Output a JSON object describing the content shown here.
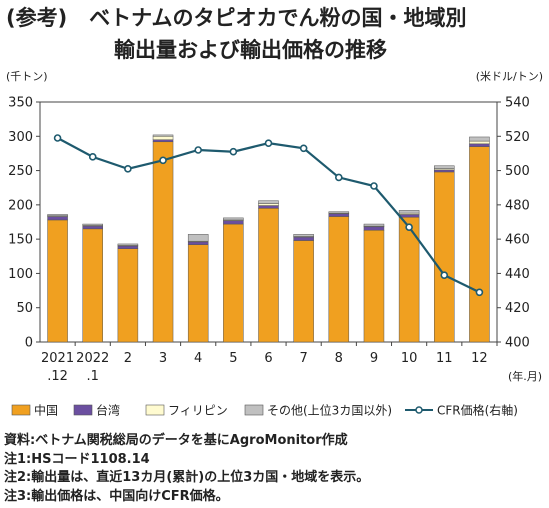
{
  "title": {
    "prefix": "(参考)",
    "line1": "ベトナムのタピオカでん粉の国・地域別",
    "line2": "輸出量および輸出価格の推移"
  },
  "chart_data": {
    "type": "bar",
    "stacked": true,
    "categories": [
      "2021\n.12",
      "2022\n.1",
      "2",
      "3",
      "4",
      "5",
      "6",
      "7",
      "8",
      "9",
      "10",
      "11",
      "12"
    ],
    "x_unit": "(年.月)",
    "y_left": {
      "unit": "(千トン)",
      "ylim": [
        0,
        350
      ],
      "ticks": [
        0,
        50,
        100,
        150,
        200,
        250,
        300,
        350
      ]
    },
    "y_right": {
      "unit": "(米ドル/トン)",
      "ylim": [
        400,
        540
      ],
      "ticks": [
        400,
        420,
        440,
        460,
        480,
        500,
        520,
        540
      ]
    },
    "series": [
      {
        "name": "中国",
        "color": "#f0a020",
        "axis": "left",
        "values": [
          178,
          165,
          136,
          292,
          142,
          172,
          195,
          148,
          183,
          163,
          182,
          248,
          285
        ]
      },
      {
        "name": "台湾",
        "color": "#6b4fa0",
        "axis": "left",
        "values": [
          5,
          4,
          4,
          3,
          4,
          5,
          4,
          5,
          4,
          5,
          4,
          3,
          4
        ]
      },
      {
        "name": "フィリピン",
        "color": "#fffbd0",
        "axis": "left",
        "values": [
          1,
          1,
          1,
          5,
          1,
          1,
          3,
          1,
          1,
          1,
          2,
          2,
          4
        ]
      },
      {
        "name": "その他(上位3カ国以外)",
        "color": "#c0c0c0",
        "axis": "left",
        "values": [
          2,
          2,
          2,
          2,
          10,
          3,
          4,
          3,
          2,
          3,
          4,
          4,
          6
        ]
      },
      {
        "name": "CFR価格(右軸)",
        "type": "line",
        "color": "#1e5a6e",
        "axis": "right",
        "values": [
          519,
          508,
          501,
          506,
          512,
          511,
          516,
          513,
          496,
          491,
          467,
          439,
          429
        ]
      }
    ],
    "grid": false,
    "legend_position": "bottom"
  },
  "notes": [
    "資料:ベトナム関税総局のデータを基にAgroMonitor作成",
    "注1:HSコード1108.14",
    "注2:輸出量は、直近13カ月(累計)の上位3カ国・地域を表示。",
    "注3:輸出価格は、中国向けCFR価格。"
  ]
}
